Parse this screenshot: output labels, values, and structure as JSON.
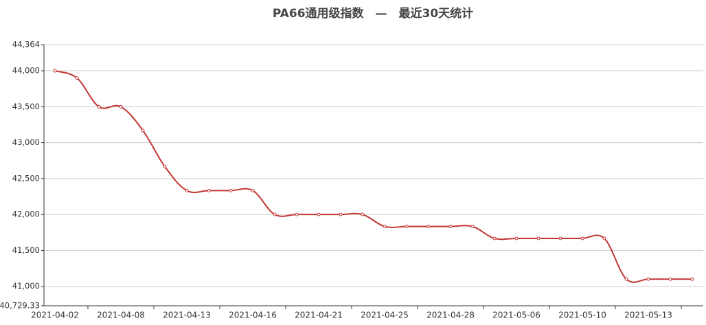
{
  "chart_data": {
    "type": "line",
    "title": "PA66通用级指数　—　最近30天统计",
    "categories": [
      "2021-04-02",
      null,
      null,
      "2021-04-08",
      null,
      null,
      "2021-04-13",
      null,
      null,
      "2021-04-16",
      null,
      null,
      "2021-04-21",
      null,
      null,
      "2021-04-25",
      null,
      null,
      "2021-04-28",
      null,
      null,
      "2021-05-06",
      null,
      null,
      "2021-05-10",
      null,
      null,
      "2021-05-13",
      null,
      null
    ],
    "values": [
      44000,
      43900,
      43500,
      43500,
      43170,
      42667,
      42333,
      42333,
      42333,
      42333,
      42000,
      42000,
      42000,
      42000,
      42000,
      41833,
      41833,
      41833,
      41833,
      41833,
      41667,
      41667,
      41667,
      41667,
      41667,
      41667,
      41100,
      41100,
      41100,
      41100
    ],
    "color": "#c23531",
    "ylim": [
      40729.33,
      44364
    ],
    "yticks": [
      {
        "value": 40729.33,
        "label": "40,729.33"
      },
      {
        "value": 41000,
        "label": "41,000"
      },
      {
        "value": 41500,
        "label": "41,500"
      },
      {
        "value": 42000,
        "label": "42,000"
      },
      {
        "value": 42500,
        "label": "42,500"
      },
      {
        "value": 43000,
        "label": "43,000"
      },
      {
        "value": 43500,
        "label": "43,500"
      },
      {
        "value": 44000,
        "label": "44,000"
      },
      {
        "value": 44364,
        "label": "44,364"
      }
    ],
    "grid": true
  }
}
